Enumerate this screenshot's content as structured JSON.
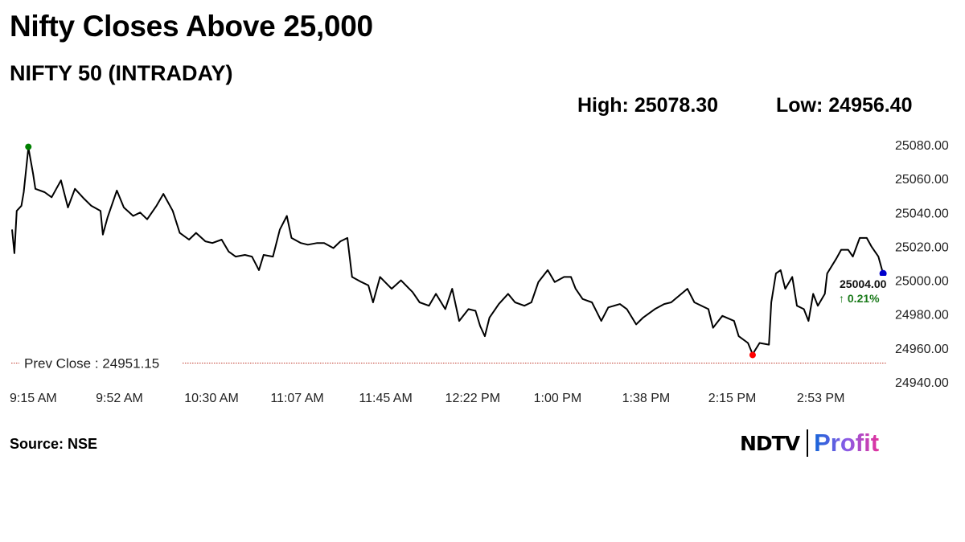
{
  "title": "Nifty Closes Above 25,000",
  "subtitle": "NIFTY 50 (INTRADAY)",
  "high_label": "High: 25078.30",
  "low_label": "Low: 24956.40",
  "source": "Source: NSE",
  "logo": {
    "left": "NDTV",
    "right": "Profit"
  },
  "colors": {
    "line": "#000000",
    "high_marker": "#008000",
    "low_marker": "#ff0000",
    "close_marker": "#0000cc",
    "prev_close": "#c0392b",
    "change_up": "#1a7a1a"
  },
  "chart_data": {
    "type": "line",
    "title": "NIFTY 50 (INTRADAY)",
    "xlabel": "",
    "ylabel": "",
    "ylim": [
      24940,
      25080
    ],
    "xlim": [
      "09:15",
      "15:30"
    ],
    "grid": false,
    "y_ticks": [
      "25080.00",
      "25060.00",
      "25040.00",
      "25020.00",
      "25000.00",
      "24980.00",
      "24960.00",
      "24940.00"
    ],
    "x_ticks": [
      {
        "t": "09:15",
        "label": "9:15 AM"
      },
      {
        "t": "09:52",
        "label": "9:52 AM"
      },
      {
        "t": "10:30",
        "label": "10:30 AM"
      },
      {
        "t": "11:07",
        "label": "11:07 AM"
      },
      {
        "t": "11:45",
        "label": "11:45 AM"
      },
      {
        "t": "12:22",
        "label": "12:22 PM"
      },
      {
        "t": "13:00",
        "label": "1:00 PM"
      },
      {
        "t": "13:38",
        "label": "1:38 PM"
      },
      {
        "t": "14:15",
        "label": "2:15 PM"
      },
      {
        "t": "14:53",
        "label": "2:53 PM"
      }
    ],
    "prev_close": {
      "value": 24951.15,
      "label": "Prev Close : 24951.15"
    },
    "high": {
      "t": "09:22",
      "value": 25078.3
    },
    "low": {
      "t": "14:33",
      "value": 24956.4
    },
    "close": {
      "t": "15:29",
      "value": 25004.0,
      "label": "25004.00",
      "change_label": "↑ 0.21%"
    },
    "series": [
      {
        "points": [
          [
            "09:15",
            25030
          ],
          [
            "09:16",
            25016
          ],
          [
            "09:17",
            25041
          ],
          [
            "09:19",
            25044
          ],
          [
            "09:20",
            25052
          ],
          [
            "09:22",
            25078.3
          ],
          [
            "09:24",
            25063
          ],
          [
            "09:25",
            25054
          ],
          [
            "09:29",
            25052
          ],
          [
            "09:32",
            25049
          ],
          [
            "09:36",
            25059
          ],
          [
            "09:39",
            25043
          ],
          [
            "09:42",
            25054
          ],
          [
            "09:46",
            25048
          ],
          [
            "09:49",
            25044
          ],
          [
            "09:53",
            25041
          ],
          [
            "09:54",
            25027
          ],
          [
            "09:56",
            25037
          ],
          [
            "10:00",
            25053
          ],
          [
            "10:03",
            25043
          ],
          [
            "10:07",
            25038
          ],
          [
            "10:10",
            25040
          ],
          [
            "10:13",
            25036
          ],
          [
            "10:17",
            25044
          ],
          [
            "10:20",
            25051
          ],
          [
            "10:24",
            25041
          ],
          [
            "10:27",
            25028
          ],
          [
            "10:31",
            25024
          ],
          [
            "10:34",
            25028
          ],
          [
            "10:38",
            25023
          ],
          [
            "10:41",
            25022
          ],
          [
            "10:45",
            25024
          ],
          [
            "10:48",
            25017
          ],
          [
            "10:51",
            25014
          ],
          [
            "10:55",
            25015
          ],
          [
            "10:58",
            25014
          ],
          [
            "11:01",
            25006
          ],
          [
            "11:03",
            25015
          ],
          [
            "11:07",
            25014
          ],
          [
            "11:10",
            25030
          ],
          [
            "11:13",
            25038
          ],
          [
            "11:15",
            25025
          ],
          [
            "11:19",
            25022
          ],
          [
            "11:22",
            25021
          ],
          [
            "11:26",
            25022
          ],
          [
            "11:29",
            25022
          ],
          [
            "11:33",
            25019
          ],
          [
            "11:36",
            25023
          ],
          [
            "11:39",
            25025
          ],
          [
            "11:41",
            25002
          ],
          [
            "11:45",
            24999
          ],
          [
            "11:48",
            24997
          ],
          [
            "11:50",
            24987
          ],
          [
            "11:53",
            25002
          ],
          [
            "11:58",
            24995
          ],
          [
            "12:02",
            25000
          ],
          [
            "12:07",
            24993
          ],
          [
            "12:10",
            24987
          ],
          [
            "12:14",
            24985
          ],
          [
            "12:17",
            24992
          ],
          [
            "12:21",
            24983
          ],
          [
            "12:24",
            24995
          ],
          [
            "12:27",
            24976
          ],
          [
            "12:31",
            24983
          ],
          [
            "12:34",
            24982
          ],
          [
            "12:36",
            24973
          ],
          [
            "12:38",
            24967
          ],
          [
            "12:40",
            24978
          ],
          [
            "12:44",
            24986
          ],
          [
            "12:48",
            24992
          ],
          [
            "12:51",
            24987
          ],
          [
            "12:55",
            24985
          ],
          [
            "12:58",
            24987
          ],
          [
            "13:01",
            24999
          ],
          [
            "13:05",
            25006
          ],
          [
            "13:08",
            24999
          ],
          [
            "13:12",
            25002
          ],
          [
            "13:15",
            25002
          ],
          [
            "13:17",
            24995
          ],
          [
            "13:20",
            24989
          ],
          [
            "13:24",
            24987
          ],
          [
            "13:28",
            24976
          ],
          [
            "13:31",
            24984
          ],
          [
            "13:36",
            24986
          ],
          [
            "13:39",
            24983
          ],
          [
            "13:43",
            24974
          ],
          [
            "13:46",
            24978
          ],
          [
            "13:51",
            24983
          ],
          [
            "13:55",
            24986
          ],
          [
            "13:58",
            24987
          ],
          [
            "14:05",
            24995
          ],
          [
            "14:08",
            24987
          ],
          [
            "14:14",
            24983
          ],
          [
            "14:16",
            24972
          ],
          [
            "14:20",
            24979
          ],
          [
            "14:25",
            24976
          ],
          [
            "14:27",
            24967
          ],
          [
            "14:31",
            24963
          ],
          [
            "14:33",
            24956.4
          ],
          [
            "14:36",
            24963
          ],
          [
            "14:40",
            24962
          ],
          [
            "14:41",
            24987
          ],
          [
            "14:43",
            25004
          ],
          [
            "14:45",
            25006
          ],
          [
            "14:47",
            24995
          ],
          [
            "14:50",
            25002
          ],
          [
            "14:52",
            24985
          ],
          [
            "14:55",
            24983
          ],
          [
            "14:57",
            24976
          ],
          [
            "14:59",
            24992
          ],
          [
            "15:01",
            24985
          ],
          [
            "15:04",
            24992
          ],
          [
            "15:05",
            25004
          ],
          [
            "15:09",
            25013
          ],
          [
            "15:11",
            25018
          ],
          [
            "15:14",
            25018
          ],
          [
            "15:16",
            25014
          ],
          [
            "15:19",
            25025
          ],
          [
            "15:22",
            25025
          ],
          [
            "15:24",
            25020
          ],
          [
            "15:27",
            25014
          ],
          [
            "15:29",
            25004
          ]
        ]
      }
    ]
  }
}
